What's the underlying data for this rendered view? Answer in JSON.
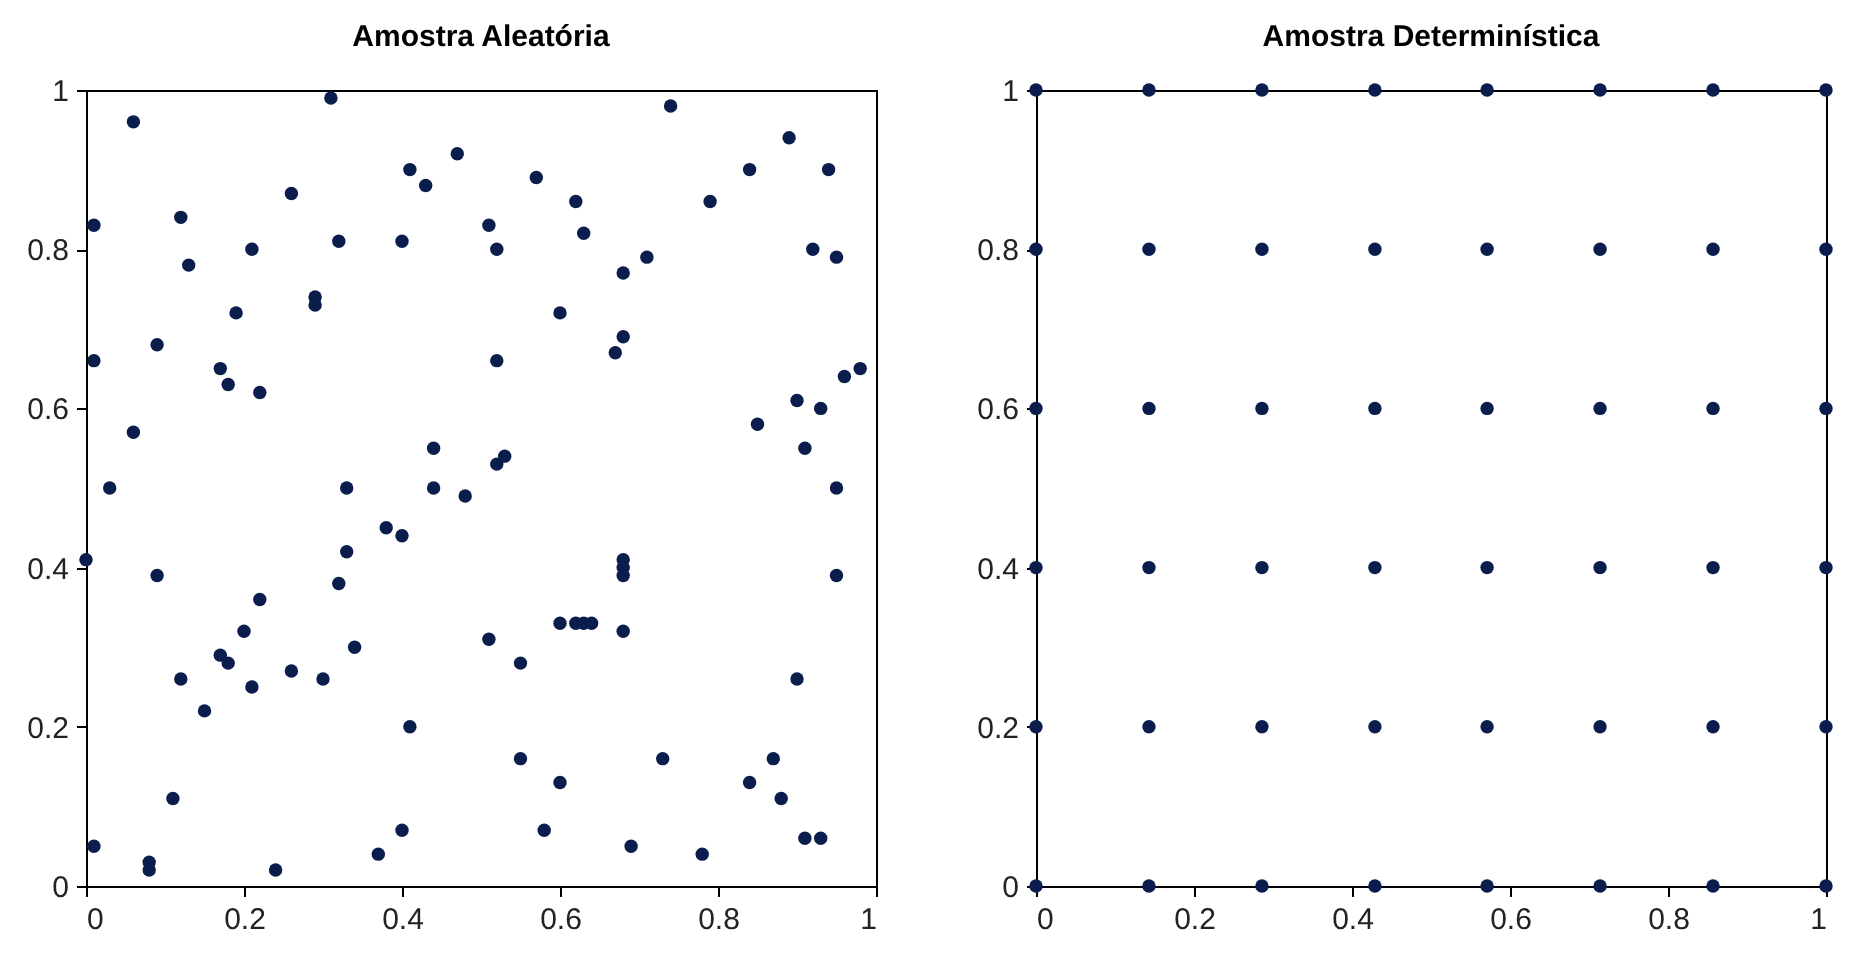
{
  "chart_data": [
    {
      "type": "scatter",
      "title": "Amostra Aleatória",
      "xlim": [
        0,
        1
      ],
      "ylim": [
        0,
        1
      ],
      "xticks": [
        0,
        0.2,
        0.4,
        0.6,
        0.8,
        1
      ],
      "yticks": [
        0,
        0.2,
        0.4,
        0.6,
        0.8,
        1
      ],
      "grid": false,
      "marker": "circle",
      "series": [
        {
          "color": "#0b1d4d",
          "x": [
            0.0,
            0.01,
            0.01,
            0.01,
            0.03,
            0.06,
            0.06,
            0.08,
            0.08,
            0.09,
            0.09,
            0.11,
            0.12,
            0.12,
            0.13,
            0.15,
            0.17,
            0.17,
            0.18,
            0.18,
            0.19,
            0.2,
            0.21,
            0.21,
            0.22,
            0.22,
            0.24,
            0.26,
            0.26,
            0.29,
            0.29,
            0.3,
            0.31,
            0.32,
            0.32,
            0.33,
            0.33,
            0.34,
            0.37,
            0.38,
            0.4,
            0.4,
            0.4,
            0.41,
            0.41,
            0.43,
            0.44,
            0.44,
            0.47,
            0.48,
            0.51,
            0.51,
            0.52,
            0.52,
            0.52,
            0.53,
            0.55,
            0.55,
            0.57,
            0.58,
            0.6,
            0.6,
            0.6,
            0.62,
            0.62,
            0.63,
            0.63,
            0.64,
            0.67,
            0.68,
            0.68,
            0.68,
            0.68,
            0.68,
            0.68,
            0.69,
            0.71,
            0.73,
            0.74,
            0.78,
            0.79,
            0.84,
            0.84,
            0.85,
            0.87,
            0.88,
            0.89,
            0.9,
            0.9,
            0.91,
            0.91,
            0.92,
            0.93,
            0.93,
            0.94,
            0.95,
            0.95,
            0.95,
            0.96,
            0.98
          ],
          "values": [
            0.41,
            0.05,
            0.66,
            0.83,
            0.5,
            0.96,
            0.57,
            0.03,
            0.02,
            0.39,
            0.68,
            0.11,
            0.26,
            0.84,
            0.78,
            0.22,
            0.65,
            0.29,
            0.63,
            0.28,
            0.72,
            0.32,
            0.8,
            0.25,
            0.36,
            0.62,
            0.02,
            0.27,
            0.87,
            0.74,
            0.73,
            0.26,
            0.99,
            0.81,
            0.38,
            0.42,
            0.5,
            0.3,
            0.04,
            0.45,
            0.44,
            0.81,
            0.07,
            0.2,
            0.9,
            0.88,
            0.55,
            0.5,
            0.92,
            0.49,
            0.83,
            0.31,
            0.8,
            0.66,
            0.53,
            0.54,
            0.28,
            0.16,
            0.89,
            0.07,
            0.72,
            0.33,
            0.13,
            0.86,
            0.33,
            0.82,
            0.33,
            0.33,
            0.67,
            0.69,
            0.32,
            0.41,
            0.4,
            0.39,
            0.77,
            0.05,
            0.79,
            0.16,
            0.98,
            0.04,
            0.86,
            0.13,
            0.9,
            0.58,
            0.16,
            0.11,
            0.94,
            0.61,
            0.26,
            0.06,
            0.55,
            0.8,
            0.6,
            0.06,
            0.9,
            0.79,
            0.5,
            0.39,
            0.64,
            0.65
          ]
        }
      ]
    },
    {
      "type": "scatter",
      "title": "Amostra Determinística",
      "xlim": [
        0,
        1
      ],
      "ylim": [
        0,
        1
      ],
      "xticks": [
        0,
        0.2,
        0.4,
        0.6,
        0.8,
        1
      ],
      "yticks": [
        0,
        0.2,
        0.4,
        0.6,
        0.8,
        1
      ],
      "grid": false,
      "marker": "circle",
      "series": [
        {
          "color": "#0b1d4d",
          "x": [
            0,
            0.143,
            0.286,
            0.429,
            0.571,
            0.714,
            0.857,
            1,
            0,
            0.143,
            0.286,
            0.429,
            0.571,
            0.714,
            0.857,
            1,
            0,
            0.143,
            0.286,
            0.429,
            0.571,
            0.714,
            0.857,
            1,
            0,
            0.143,
            0.286,
            0.429,
            0.571,
            0.714,
            0.857,
            1,
            0,
            0.143,
            0.286,
            0.429,
            0.571,
            0.714,
            0.857,
            1,
            0,
            0.143,
            0.286,
            0.429,
            0.571,
            0.714,
            0.857,
            1
          ],
          "values": [
            1,
            1,
            1,
            1,
            1,
            1,
            1,
            1,
            0.8,
            0.8,
            0.8,
            0.8,
            0.8,
            0.8,
            0.8,
            0.8,
            0.6,
            0.6,
            0.6,
            0.6,
            0.6,
            0.6,
            0.6,
            0.6,
            0.4,
            0.4,
            0.4,
            0.4,
            0.4,
            0.4,
            0.4,
            0.4,
            0.2,
            0.2,
            0.2,
            0.2,
            0.2,
            0.2,
            0.2,
            0.2,
            0,
            0,
            0,
            0,
            0,
            0,
            0,
            0
          ]
        }
      ]
    }
  ]
}
